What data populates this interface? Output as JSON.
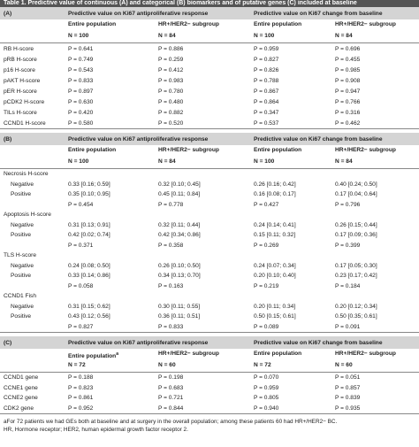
{
  "title": "Table 1. Predictive value of continuous (A) and categorical (B) biomarkers and of putative genes (C) included at baseline",
  "sections": [
    {
      "label": "(A)",
      "headers": [
        "Predictive value on Ki67 antiproliferative response",
        "Predictive value on Ki67 change from baseline"
      ],
      "subheaders": [
        {
          "text": "Entire population",
          "n": "N = 100"
        },
        {
          "text": "HR+/HER2− subgroup",
          "n": "N = 84"
        },
        {
          "text": "Entire population",
          "n": "N = 100"
        },
        {
          "text": "HR+/HER2− subgroup",
          "n": "N = 84"
        }
      ],
      "rows": [
        {
          "label": "RB H-score",
          "cells": [
            "P = 0.641",
            "P = 0.886",
            "P = 0.959",
            "P = 0.696"
          ]
        },
        {
          "label": "pRB H-score",
          "cells": [
            "P = 0.749",
            "P = 0.259",
            "P = 0.827",
            "P = 0.455"
          ]
        },
        {
          "label": "p16 H-score",
          "cells": [
            "P = 0.543",
            "P = 0.412",
            "P = 0.826",
            "P = 0.985"
          ]
        },
        {
          "label": "pAKT H-score",
          "cells": [
            "P = 0.833",
            "P = 0.983",
            "P = 0.788",
            "P = 0.908"
          ]
        },
        {
          "label": "pER H-score",
          "cells": [
            "P = 0.897",
            "P = 0.780",
            "P = 0.867",
            "P = 0.947"
          ]
        },
        {
          "label": "pCDK2 H-score",
          "cells": [
            "P = 0.630",
            "P = 0.480",
            "P = 0.864",
            "P = 0.766"
          ]
        },
        {
          "label": "TILs H-score",
          "cells": [
            "P = 0.420",
            "P = 0.882",
            "P = 0.347",
            "P = 0.316"
          ]
        },
        {
          "label": "CCND1 H-score",
          "cells": [
            "P = 0.580",
            "P = 0.520",
            "P = 0.537",
            "P = 0.462"
          ]
        }
      ]
    },
    {
      "label": "(B)",
      "headers": [
        "Predictive value on Ki67 antiproliferative response",
        "Predictive value on Ki67 change from baseline"
      ],
      "subheaders": [
        {
          "text": "Entire population",
          "n": "N = 100"
        },
        {
          "text": "HR+/HER2− subgroup",
          "n": "N = 84"
        },
        {
          "text": "Entire population",
          "n": "N = 100"
        },
        {
          "text": "HR+/HER2− subgroup",
          "n": "N = 84"
        }
      ],
      "groups": [
        {
          "label": "Necrosis H-score",
          "rows": [
            {
              "label": "Negative",
              "cells": [
                "0.33 [0.16; 0.59]",
                "0.32 [0.10; 0.45]",
                "0.26 [0.16; 0.42]",
                "0.40 [0.24; 0.50]"
              ]
            },
            {
              "label": "Positive",
              "cells": [
                "0.35 [0.10; 0.95]",
                "0.45 [0.11; 0.84]",
                "0.16 [0.08; 0.17]",
                "0.17 [0.04; 0.64]"
              ]
            },
            {
              "label": "",
              "cells": [
                "P = 0.454",
                "P = 0.778",
                "P = 0.427",
                "P = 0.796"
              ]
            }
          ]
        },
        {
          "label": "Apoptosis H-score",
          "rows": [
            {
              "label": "Negative",
              "cells": [
                "0.31 [0.13; 0.91]",
                "0.32 [0.11; 0.44]",
                "0.24 [0.14; 0.41]",
                "0.26 [0.15; 0.44]"
              ]
            },
            {
              "label": "Positive",
              "cells": [
                "0.42 [0.02; 0.74]",
                "0.42 [0.34; 0.86]",
                "0.15 [0.11; 0.32]",
                "0.17 [0.09; 0.36]"
              ]
            },
            {
              "label": "",
              "cells": [
                "P = 0.371",
                "P = 0.358",
                "P = 0.269",
                "P = 0.399"
              ]
            }
          ]
        },
        {
          "label": "TLS H-score",
          "rows": [
            {
              "label": "Negative",
              "cells": [
                "0.24 [0.08; 0.50]",
                "0.26 [0.10; 0.50]",
                "0.24 [0.07; 0.34]",
                "0.17 [0.05; 0.30]"
              ]
            },
            {
              "label": "Positive",
              "cells": [
                "0.33 [0.14; 0.86]",
                "0.34 [0.13; 0.70]",
                "0.20 [0.10; 0.40]",
                "0.23 [0.17; 0.42]"
              ]
            },
            {
              "label": "",
              "cells": [
                "P = 0.058",
                "P = 0.163",
                "P = 0.219",
                "P = 0.184"
              ]
            }
          ]
        },
        {
          "label": "CCND1 Fish",
          "rows": [
            {
              "label": "Negative",
              "cells": [
                "0.31 [0.15; 0.62]",
                "0.30 [0.11; 0.55]",
                "0.20 [0.11; 0.34]",
                "0.20 [0.12; 0.34]"
              ]
            },
            {
              "label": "Positive",
              "cells": [
                "0.43 [0.12; 0.56]",
                "0.36 [0.11; 0.51]",
                "0.50 [0.15; 0.61]",
                "0.50 [0.35; 0.61]"
              ]
            },
            {
              "label": "",
              "cells": [
                "P = 0.827",
                "P = 0.833",
                "P = 0.089",
                "P = 0.091"
              ]
            }
          ]
        }
      ]
    },
    {
      "label": "(C)",
      "headers": [
        "Predictive value on Ki67 antiproliferative response",
        "Predictive value on Ki67 change from baseline"
      ],
      "subheaders": [
        {
          "text": "Entire population",
          "sup": "a",
          "n": "N = 72"
        },
        {
          "text": "HR+/HER2− subgroup",
          "n": "N = 60"
        },
        {
          "text": "Entire population",
          "n": "N = 72"
        },
        {
          "text": "HR+/HER2− subgroup",
          "n": "N = 60"
        }
      ],
      "rows": [
        {
          "label": "CCND1 gene",
          "cells": [
            "P = 0.188",
            "P = 0.198",
            "P = 0.070",
            "P = 0.051"
          ]
        },
        {
          "label": "CCNE1 gene",
          "cells": [
            "P = 0.823",
            "P = 0.683",
            "P = 0.959",
            "P = 0.857"
          ]
        },
        {
          "label": "CCNE2 gene",
          "cells": [
            "P = 0.861",
            "P = 0.721",
            "P = 0.805",
            "P = 0.839"
          ]
        },
        {
          "label": "CDK2 gene",
          "cells": [
            "P = 0.952",
            "P = 0.844",
            "P = 0.940",
            "P = 0.935"
          ]
        }
      ]
    }
  ],
  "footnotes": [
    "aFor 72 patients we had GEs both at baseline and at surgery in the overall population; among these patients 60 had HR+/HER2− BC.",
    "HR, Hormone receptor; HER2, human epidermal growth factor receptor 2."
  ]
}
